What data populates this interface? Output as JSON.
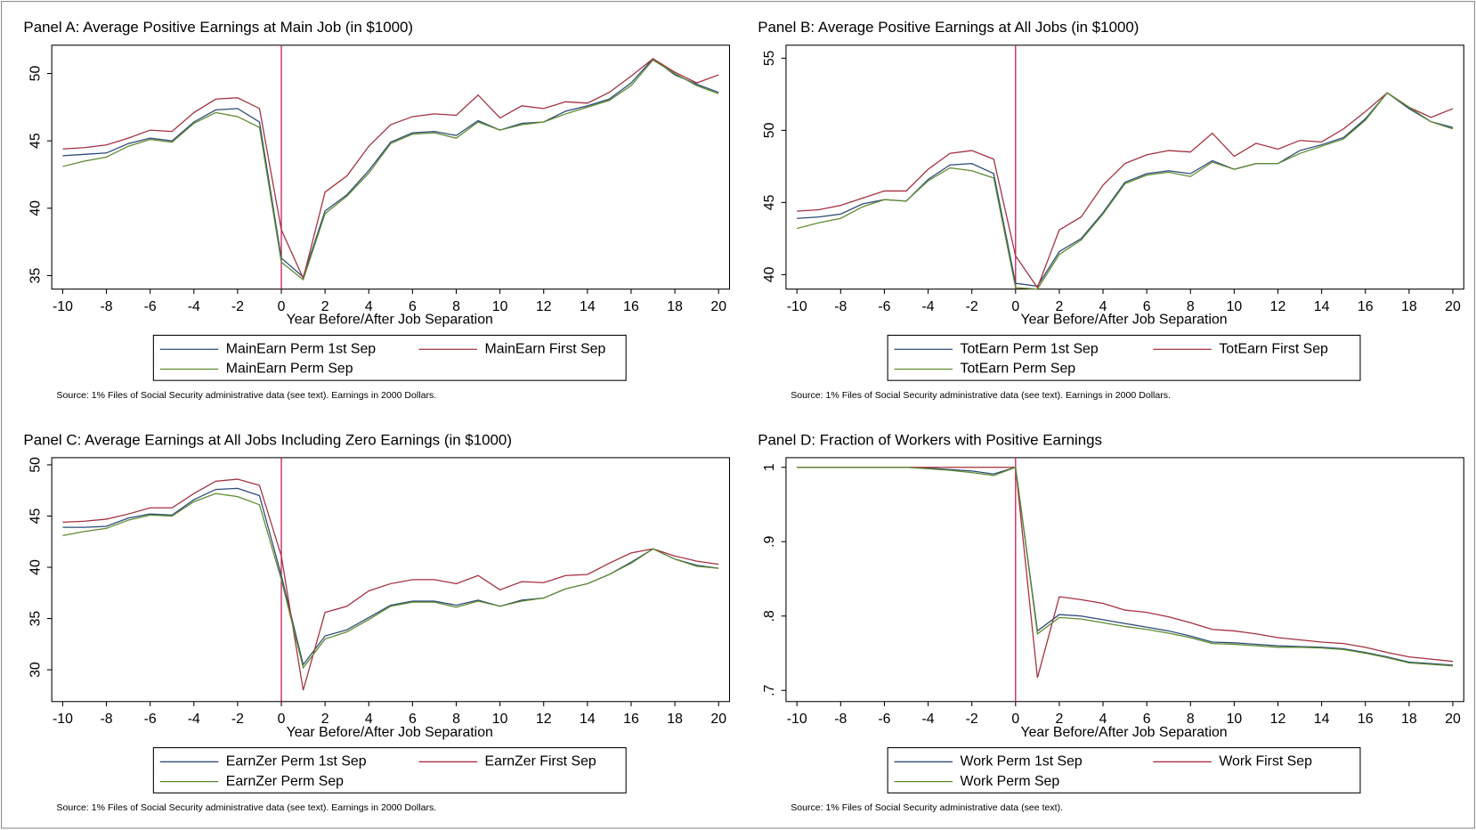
{
  "chart_data": [
    {
      "type": "line",
      "title": "Panel A: Average Positive Earnings at Main Job (in $1000)",
      "x_label": "Year Before/After Job Separation",
      "note": "Source: 1% Files of Social Security administrative data (see text). Earnings in 2000 Dollars.",
      "x": [
        -10,
        -9,
        -8,
        -7,
        -6,
        -5,
        -4,
        -3,
        -2,
        -1,
        0,
        1,
        2,
        3,
        4,
        5,
        6,
        7,
        8,
        9,
        10,
        11,
        12,
        13,
        14,
        15,
        16,
        17,
        18,
        19,
        20
      ],
      "xlim": [
        -10.5,
        20.5
      ],
      "xticks": [
        -10,
        -8,
        -6,
        -4,
        -2,
        0,
        2,
        4,
        6,
        8,
        10,
        12,
        14,
        16,
        18,
        20
      ],
      "ylim": [
        34.0,
        52.1
      ],
      "yticks": [
        35,
        40,
        45,
        50
      ],
      "reference_line_x": 0,
      "reference_color": "#c2185b",
      "series": [
        {
          "name": "MainEarn Perm 1st Sep",
          "color": "#2b4a78",
          "values": [
            43.9,
            44.0,
            44.1,
            44.8,
            45.2,
            45.0,
            46.4,
            47.3,
            47.4,
            46.4,
            36.3,
            34.9,
            39.8,
            41.0,
            42.8,
            44.9,
            45.6,
            45.7,
            45.4,
            46.5,
            45.8,
            46.3,
            46.4,
            47.2,
            47.6,
            48.1,
            49.3,
            51.1,
            49.9,
            49.2,
            48.6
          ]
        },
        {
          "name": "MainEarn First Sep",
          "color": "#a3303f",
          "values": [
            44.4,
            44.5,
            44.7,
            45.2,
            45.8,
            45.7,
            47.1,
            48.1,
            48.2,
            47.4,
            38.4,
            34.8,
            41.2,
            42.4,
            44.6,
            46.2,
            46.8,
            47.0,
            46.9,
            48.4,
            46.7,
            47.6,
            47.4,
            47.9,
            47.8,
            48.6,
            49.8,
            51.1,
            50.1,
            49.3,
            49.9
          ]
        },
        {
          "name": "MainEarn Perm Sep",
          "color": "#5e8a2e",
          "values": [
            43.1,
            43.5,
            43.8,
            44.6,
            45.1,
            44.9,
            46.3,
            47.1,
            46.8,
            46.0,
            36.0,
            34.7,
            39.6,
            40.9,
            42.6,
            44.8,
            45.5,
            45.6,
            45.2,
            46.4,
            45.8,
            46.2,
            46.4,
            47.0,
            47.5,
            48.0,
            49.1,
            51.0,
            50.0,
            49.1,
            48.5
          ]
        }
      ]
    },
    {
      "type": "line",
      "title": "Panel B: Average Positive Earnings at All Jobs (in $1000)",
      "x_label": "Year Before/After Job Separation",
      "note": "Source: 1% Files of Social Security administrative data (see text). Earnings in 2000 Dollars.",
      "x": [
        -10,
        -9,
        -8,
        -7,
        -6,
        -5,
        -4,
        -3,
        -2,
        -1,
        0,
        1,
        2,
        3,
        4,
        5,
        6,
        7,
        8,
        9,
        10,
        11,
        12,
        13,
        14,
        15,
        16,
        17,
        18,
        19,
        20
      ],
      "xlim": [
        -10.5,
        20.5
      ],
      "xticks": [
        -10,
        -8,
        -6,
        -4,
        -2,
        0,
        2,
        4,
        6,
        8,
        10,
        12,
        14,
        16,
        18,
        20
      ],
      "ylim": [
        39.0,
        55.9
      ],
      "yticks": [
        40,
        45,
        50,
        55
      ],
      "reference_line_x": 0,
      "reference_color": "#c2185b",
      "series": [
        {
          "name": "TotEarn Perm 1st Sep",
          "color": "#2b4a78",
          "values": [
            43.9,
            44.0,
            44.2,
            44.9,
            45.2,
            45.1,
            46.6,
            47.6,
            47.7,
            47.0,
            39.4,
            39.2,
            41.6,
            42.5,
            44.3,
            46.4,
            47.0,
            47.2,
            47.0,
            47.9,
            47.3,
            47.7,
            47.7,
            48.6,
            49.0,
            49.5,
            50.8,
            52.6,
            51.5,
            50.6,
            50.2
          ]
        },
        {
          "name": "TotEarn First Sep",
          "color": "#a3303f",
          "values": [
            44.4,
            44.5,
            44.8,
            45.3,
            45.8,
            45.8,
            47.3,
            48.4,
            48.6,
            48.0,
            41.3,
            39.1,
            43.1,
            44.0,
            46.2,
            47.7,
            48.3,
            48.6,
            48.5,
            49.8,
            48.2,
            49.1,
            48.7,
            49.3,
            49.2,
            50.1,
            51.3,
            52.6,
            51.6,
            50.9,
            51.5
          ]
        },
        {
          "name": "TotEarn Perm Sep",
          "color": "#5e8a2e",
          "values": [
            43.2,
            43.6,
            43.9,
            44.7,
            45.2,
            45.1,
            46.5,
            47.4,
            47.2,
            46.7,
            39.1,
            39.0,
            41.4,
            42.4,
            44.2,
            46.3,
            46.9,
            47.1,
            46.8,
            47.8,
            47.3,
            47.7,
            47.7,
            48.4,
            48.9,
            49.4,
            50.7,
            52.6,
            51.6,
            50.6,
            50.1
          ]
        }
      ]
    },
    {
      "type": "line",
      "title": "Panel C: Average Earnings at All Jobs Including Zero Earnings (in $1000)",
      "x_label": "Year Before/After Job Separation",
      "note": "Source: 1% Files of Social Security administrative data (see text). Earnings in 2000 Dollars.",
      "x": [
        -10,
        -9,
        -8,
        -7,
        -6,
        -5,
        -4,
        -3,
        -2,
        -1,
        0,
        1,
        2,
        3,
        4,
        5,
        6,
        7,
        8,
        9,
        10,
        11,
        12,
        13,
        14,
        15,
        16,
        17,
        18,
        19,
        20
      ],
      "xlim": [
        -10.5,
        20.5
      ],
      "xticks": [
        -10,
        -8,
        -6,
        -4,
        -2,
        0,
        2,
        4,
        6,
        8,
        10,
        12,
        14,
        16,
        18,
        20
      ],
      "ylim": [
        26.9,
        50.7
      ],
      "yticks": [
        30,
        35,
        40,
        45,
        50
      ],
      "reference_line_x": 0,
      "reference_color": "#c2185b",
      "series": [
        {
          "name": "EarnZer Perm 1st Sep",
          "color": "#2b4a78",
          "values": [
            43.9,
            43.9,
            44.0,
            44.8,
            45.2,
            45.1,
            46.6,
            47.6,
            47.7,
            47.0,
            39.2,
            30.5,
            33.3,
            33.9,
            35.1,
            36.3,
            36.7,
            36.7,
            36.3,
            36.8,
            36.2,
            36.8,
            37.0,
            37.9,
            38.4,
            39.3,
            40.5,
            41.8,
            40.8,
            40.2,
            39.9
          ]
        },
        {
          "name": "EarnZer First Sep",
          "color": "#a3303f",
          "values": [
            44.4,
            44.5,
            44.7,
            45.2,
            45.8,
            45.8,
            47.2,
            48.4,
            48.6,
            48.0,
            41.1,
            28.0,
            35.6,
            36.2,
            37.7,
            38.4,
            38.8,
            38.8,
            38.4,
            39.2,
            37.8,
            38.6,
            38.5,
            39.2,
            39.3,
            40.4,
            41.4,
            41.8,
            41.1,
            40.6,
            40.3
          ]
        },
        {
          "name": "EarnZer Perm Sep",
          "color": "#5e8a2e",
          "values": [
            43.1,
            43.5,
            43.8,
            44.6,
            45.1,
            45.0,
            46.4,
            47.2,
            46.9,
            46.1,
            38.8,
            30.2,
            33.0,
            33.7,
            34.9,
            36.2,
            36.6,
            36.6,
            36.1,
            36.7,
            36.2,
            36.7,
            37.0,
            37.9,
            38.4,
            39.3,
            40.4,
            41.8,
            40.8,
            40.1,
            39.9
          ]
        }
      ]
    },
    {
      "type": "line",
      "title": "Panel D: Fraction of Workers with Positive Earnings",
      "x_label": "Year Before/After Job Separation",
      "note": "Source: 1% Files of Social Security administrative data (see text).",
      "x": [
        -10,
        -9,
        -8,
        -7,
        -6,
        -5,
        -4,
        -3,
        -2,
        -1,
        0,
        1,
        2,
        3,
        4,
        5,
        6,
        7,
        8,
        9,
        10,
        11,
        12,
        13,
        14,
        15,
        16,
        17,
        18,
        19,
        20
      ],
      "xlim": [
        -10.5,
        20.5
      ],
      "xticks": [
        -10,
        -8,
        -6,
        -4,
        -2,
        0,
        2,
        4,
        6,
        8,
        10,
        12,
        14,
        16,
        18,
        20
      ],
      "ylim": [
        0.685,
        1.013
      ],
      "yticks": [
        {
          "value": 0.7,
          "label": ".7"
        },
        {
          "value": 0.8,
          "label": ".8"
        },
        {
          "value": 0.9,
          "label": ".9"
        },
        1
      ],
      "reference_line_x": 0,
      "reference_color": "#c2185b",
      "series": [
        {
          "name": "Work Perm 1st Sep",
          "color": "#2b4a78",
          "values": [
            1,
            1,
            1,
            1,
            1,
            1,
            0.999,
            0.997,
            0.995,
            0.991,
            1,
            0.78,
            0.802,
            0.8,
            0.795,
            0.79,
            0.785,
            0.78,
            0.773,
            0.765,
            0.764,
            0.762,
            0.76,
            0.759,
            0.758,
            0.756,
            0.751,
            0.745,
            0.738,
            0.736,
            0.734
          ]
        },
        {
          "name": "Work First Sep",
          "color": "#a3303f",
          "values": [
            1,
            1,
            1,
            1,
            1,
            1,
            1,
            1,
            1,
            1,
            1,
            0.717,
            0.826,
            0.822,
            0.817,
            0.808,
            0.805,
            0.799,
            0.791,
            0.782,
            0.78,
            0.776,
            0.771,
            0.768,
            0.765,
            0.763,
            0.758,
            0.751,
            0.745,
            0.742,
            0.739
          ]
        },
        {
          "name": "Work Perm Sep",
          "color": "#5e8a2e",
          "values": [
            1,
            1,
            1,
            1,
            1,
            1,
            0.998,
            0.996,
            0.993,
            0.989,
            1,
            0.776,
            0.798,
            0.796,
            0.791,
            0.786,
            0.782,
            0.777,
            0.771,
            0.763,
            0.762,
            0.76,
            0.758,
            0.758,
            0.757,
            0.755,
            0.75,
            0.744,
            0.737,
            0.735,
            0.733
          ]
        }
      ]
    }
  ]
}
